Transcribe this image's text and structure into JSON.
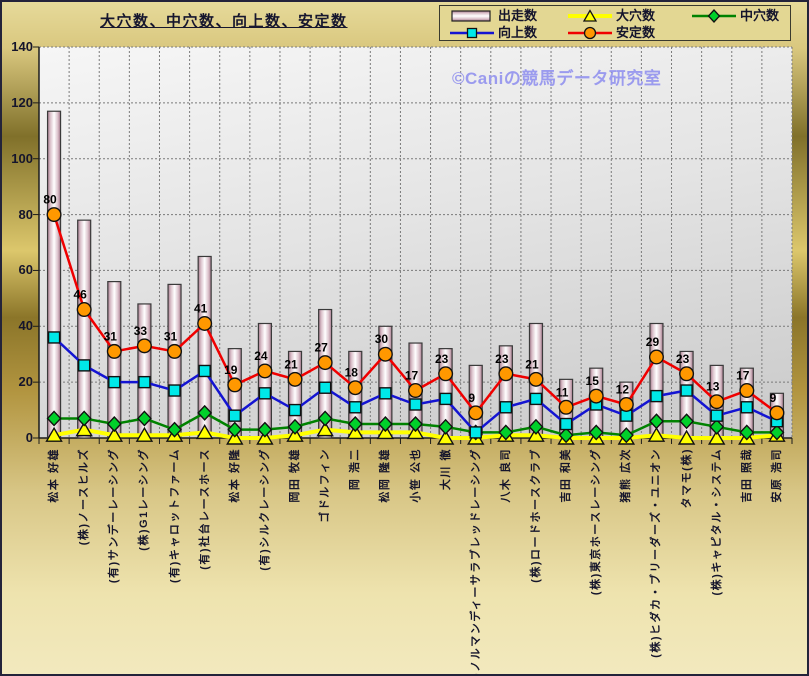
{
  "title": "大穴数、中穴数、向上数、安定数",
  "watermark": "©Caniの競馬データ研究室",
  "colors": {
    "frame_border": "#23233a",
    "background_gold_dark": "#80702a",
    "background_gold_light": "#f2e9be",
    "plot_bg_light": "#f6f6f6",
    "plot_bg_dark": "#c9c9c9",
    "grid": "#7a7a7a",
    "axis": "#1c1c1c",
    "text": "#15152c",
    "watermark_text": "#9b9bee",
    "bar_edge": "#a5798c",
    "bar_face": "#ffffff",
    "ooana_yellow": "#ffff00",
    "chuuana_green_line": "#008200",
    "chuuana_green_fill": "#00d02a",
    "koujou_blue_line": "#1414d2",
    "koujou_cyan_fill": "#00e8e8",
    "antei_red_line": "#f00000",
    "antei_orange_fill": "#ff9800"
  },
  "y_axis": {
    "min": 0,
    "max": 140,
    "step": 20,
    "ticks": [
      0,
      20,
      40,
      60,
      80,
      100,
      120,
      140
    ]
  },
  "legend": {
    "rows": [
      [
        {
          "label": "出走数",
          "swatch": "bar"
        },
        {
          "label": "大穴数",
          "swatch": "triangle"
        },
        {
          "label": "中穴数",
          "swatch": "diamond"
        }
      ],
      [
        {
          "label": "向上数",
          "swatch": "square"
        },
        {
          "label": "安定数",
          "swatch": "circle"
        }
      ]
    ]
  },
  "chart_data": {
    "type": "bar",
    "subtype": "bar-line-combo",
    "title": "大穴数、中穴数、向上数、安定数",
    "xlabel": "",
    "ylabel": "",
    "ylim": [
      0,
      140
    ],
    "grid": true,
    "legend_position": "top-right",
    "categories": [
      "松本 好雄",
      "(株)ノースヒルズ",
      "(有)サンデーレーシング",
      "(株)G1レーシング",
      "(有)キャロットファーム",
      "(有)社台レースホース",
      "松本 好隆",
      "(有)シルクレーシング",
      "岡田 牧雄",
      "ゴドルフィン",
      "岡 浩二",
      "松岡 隆雄",
      "小笹 公也",
      "大川 徹",
      "(株)ノルマンディーサラブレッドレーシング",
      "八木 良司",
      "(株)ロードホースクラブ",
      "吉田 和美",
      "(株)東京ホースレーシング",
      "猪熊 広次",
      "(株)ヒダカ・ブリーダーズ・ユニオン",
      "タマモ(株)",
      "(株)キャピタル・システム",
      "吉田 照哉",
      "安原 浩司"
    ],
    "series": [
      {
        "name": "出走数",
        "slug": "shussou",
        "type": "bar",
        "values": [
          117,
          78,
          56,
          48,
          55,
          65,
          32,
          41,
          31,
          46,
          31,
          40,
          34,
          32,
          26,
          33,
          41,
          21,
          25,
          20,
          41,
          31,
          26,
          25,
          16
        ]
      },
      {
        "name": "大穴数",
        "slug": "ooana",
        "type": "line",
        "marker": "triangle",
        "line": "#ffff00",
        "fill": "#ffff00",
        "width": 4,
        "values": [
          1,
          3,
          1,
          1,
          1,
          2,
          0,
          0,
          1,
          3,
          2,
          2,
          2,
          0,
          0,
          1,
          1,
          0,
          0,
          0,
          1,
          0,
          0,
          0,
          1
        ]
      },
      {
        "name": "中穴数",
        "slug": "chuuana",
        "type": "line",
        "marker": "diamond",
        "line": "#008200",
        "fill": "#00d02a",
        "width": 2.5,
        "values": [
          7,
          7,
          5,
          7,
          3,
          9,
          3,
          3,
          4,
          7,
          5,
          5,
          5,
          4,
          2,
          2,
          4,
          1,
          2,
          1,
          6,
          6,
          4,
          2,
          2
        ]
      },
      {
        "name": "向上数",
        "slug": "koujou",
        "type": "line",
        "marker": "square",
        "line": "#1414d2",
        "fill": "#00e8e8",
        "width": 2.5,
        "values": [
          36,
          26,
          20,
          20,
          17,
          24,
          8,
          16,
          10,
          18,
          11,
          16,
          12,
          14,
          2,
          11,
          14,
          5,
          12,
          8,
          15,
          17,
          8,
          11,
          6
        ]
      },
      {
        "name": "安定数",
        "slug": "antei",
        "type": "line",
        "marker": "circle",
        "line": "#f00000",
        "fill": "#ff9800",
        "width": 2.5,
        "data_labels": true,
        "values": [
          80,
          46,
          31,
          33,
          31,
          41,
          19,
          24,
          21,
          27,
          18,
          30,
          17,
          23,
          9,
          23,
          21,
          11,
          15,
          12,
          29,
          23,
          13,
          17,
          9
        ]
      }
    ]
  }
}
